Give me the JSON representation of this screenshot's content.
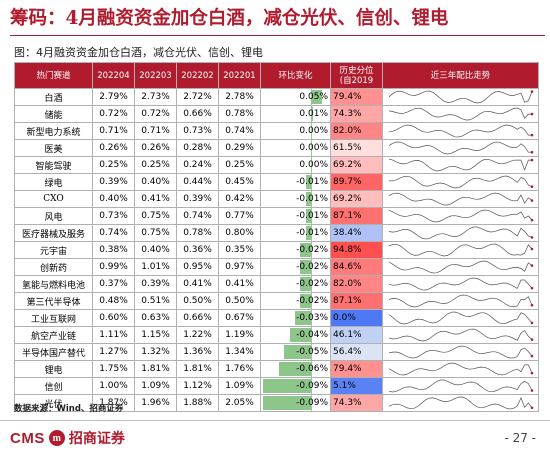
{
  "title": "筹码：4月融资资金加仓白酒，减仓光伏、信创、锂电",
  "subtitle": "图：4月融资资金加仓白酒，减仓光伏、信创、锂电",
  "table": {
    "headers": {
      "sector": "热门赛道",
      "m1": "202204",
      "m2": "202203",
      "m3": "202202",
      "m4": "202201",
      "change": "环比变化",
      "pct_line1": "历史分位",
      "pct_line2": "(自2019",
      "trend": "近三年配比走势"
    },
    "rows": [
      {
        "name": "白酒",
        "v1": "2.79%",
        "v2": "2.73%",
        "v3": "2.72%",
        "v4": "2.78%",
        "chg": "0.05%",
        "chg_num": 0.05,
        "pct": "79.4%",
        "pct_num": 79.4
      },
      {
        "name": "储能",
        "v1": "0.72%",
        "v2": "0.72%",
        "v3": "0.66%",
        "v4": "0.78%",
        "chg": "0.01%",
        "chg_num": 0.01,
        "pct": "74.3%",
        "pct_num": 74.3
      },
      {
        "name": "新型电力系统",
        "v1": "0.71%",
        "v2": "0.71%",
        "v3": "0.73%",
        "v4": "0.74%",
        "chg": "0.00%",
        "chg_num": 0.0,
        "pct": "82.0%",
        "pct_num": 82.0
      },
      {
        "name": "医美",
        "v1": "0.26%",
        "v2": "0.26%",
        "v3": "0.28%",
        "v4": "0.29%",
        "chg": "0.00%",
        "chg_num": 0.0,
        "pct": "61.5%",
        "pct_num": 61.5
      },
      {
        "name": "智能驾驶",
        "v1": "0.25%",
        "v2": "0.25%",
        "v3": "0.24%",
        "v4": "0.25%",
        "chg": "0.00%",
        "chg_num": 0.0,
        "pct": "69.2%",
        "pct_num": 69.2
      },
      {
        "name": "绿电",
        "v1": "0.39%",
        "v2": "0.40%",
        "v3": "0.44%",
        "v4": "0.45%",
        "chg": "-0.01%",
        "chg_num": -0.01,
        "pct": "89.7%",
        "pct_num": 89.7
      },
      {
        "name": "CXO",
        "v1": "0.40%",
        "v2": "0.41%",
        "v3": "0.39%",
        "v4": "0.42%",
        "chg": "-0.01%",
        "chg_num": -0.01,
        "pct": "69.2%",
        "pct_num": 69.2
      },
      {
        "name": "风电",
        "v1": "0.73%",
        "v2": "0.75%",
        "v3": "0.74%",
        "v4": "0.77%",
        "chg": "-0.01%",
        "chg_num": -0.01,
        "pct": "87.1%",
        "pct_num": 87.1
      },
      {
        "name": "医疗器械及服务",
        "v1": "0.74%",
        "v2": "0.75%",
        "v3": "0.78%",
        "v4": "0.80%",
        "chg": "-0.01%",
        "chg_num": -0.01,
        "pct": "38.4%",
        "pct_num": 38.4
      },
      {
        "name": "元宇宙",
        "v1": "0.38%",
        "v2": "0.40%",
        "v3": "0.36%",
        "v4": "0.35%",
        "chg": "-0.02%",
        "chg_num": -0.02,
        "pct": "94.8%",
        "pct_num": 94.8
      },
      {
        "name": "创新药",
        "v1": "0.99%",
        "v2": "1.01%",
        "v3": "0.95%",
        "v4": "0.97%",
        "chg": "-0.02%",
        "chg_num": -0.02,
        "pct": "84.6%",
        "pct_num": 84.6
      },
      {
        "name": "氢能与燃料电池",
        "v1": "0.37%",
        "v2": "0.39%",
        "v3": "0.41%",
        "v4": "0.41%",
        "chg": "-0.02%",
        "chg_num": -0.02,
        "pct": "82.0%",
        "pct_num": 82.0
      },
      {
        "name": "第三代半导体",
        "v1": "0.48%",
        "v2": "0.51%",
        "v3": "0.50%",
        "v4": "0.50%",
        "chg": "-0.02%",
        "chg_num": -0.02,
        "pct": "87.1%",
        "pct_num": 87.1
      },
      {
        "name": "工业互联网",
        "v1": "0.60%",
        "v2": "0.63%",
        "v3": "0.66%",
        "v4": "0.67%",
        "chg": "-0.03%",
        "chg_num": -0.03,
        "pct": "0.0%",
        "pct_num": 0.0
      },
      {
        "name": "航空产业链",
        "v1": "1.11%",
        "v2": "1.15%",
        "v3": "1.22%",
        "v4": "1.19%",
        "chg": "-0.04%",
        "chg_num": -0.04,
        "pct": "46.1%",
        "pct_num": 46.1
      },
      {
        "name": "半导体国产替代",
        "v1": "1.27%",
        "v2": "1.32%",
        "v3": "1.36%",
        "v4": "1.34%",
        "chg": "-0.05%",
        "chg_num": -0.05,
        "pct": "56.4%",
        "pct_num": 56.4
      },
      {
        "name": "锂电",
        "v1": "1.75%",
        "v2": "1.81%",
        "v3": "1.81%",
        "v4": "1.76%",
        "chg": "-0.06%",
        "chg_num": -0.06,
        "pct": "79.4%",
        "pct_num": 79.4
      },
      {
        "name": "信创",
        "v1": "1.00%",
        "v2": "1.09%",
        "v3": "1.12%",
        "v4": "1.09%",
        "chg": "-0.09%",
        "chg_num": -0.09,
        "pct": "5.1%",
        "pct_num": 5.1
      },
      {
        "name": "光伏",
        "v1": "1.87%",
        "v2": "1.96%",
        "v3": "1.88%",
        "v4": "2.05%",
        "chg": "-0.09%",
        "chg_num": -0.09,
        "pct": "74.3%",
        "pct_num": 74.3
      }
    ]
  },
  "source": "数据来源：Wind、招商证券",
  "footer": {
    "logo_text": "CMS",
    "logo_badge": "m",
    "logo_cn": "招商证券",
    "page": "- 27 -"
  },
  "colors": {
    "brand": "#b01c2e",
    "bar_green": "#8dc58a",
    "pct_high": "#e8474c",
    "pct_low": "#4a78c2"
  }
}
